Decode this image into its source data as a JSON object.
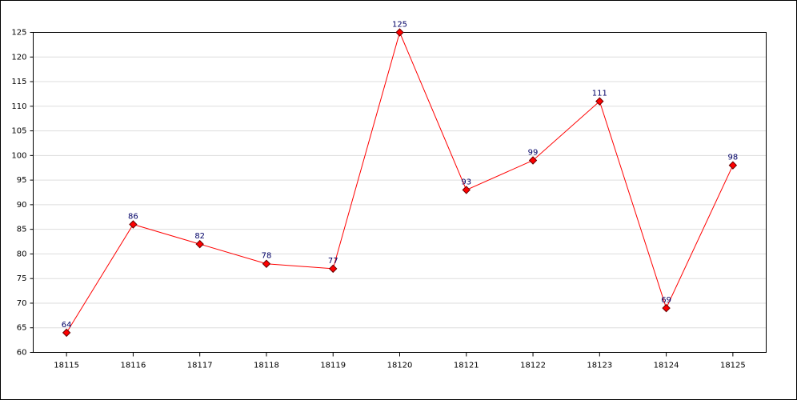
{
  "chart_data": {
    "type": "line",
    "categories": [
      "18115",
      "18116",
      "18117",
      "18118",
      "18119",
      "18120",
      "18121",
      "18122",
      "18123",
      "18124",
      "18125"
    ],
    "series": [
      {
        "name": null,
        "color": "#ff0000",
        "values": [
          64,
          86,
          82,
          78,
          77,
          125,
          93,
          99,
          111,
          69,
          98
        ]
      }
    ],
    "ylim": [
      60,
      125
    ],
    "yticks": [
      60,
      65,
      70,
      75,
      80,
      85,
      90,
      95,
      100,
      105,
      110,
      115,
      120,
      125
    ],
    "grid": true
  }
}
